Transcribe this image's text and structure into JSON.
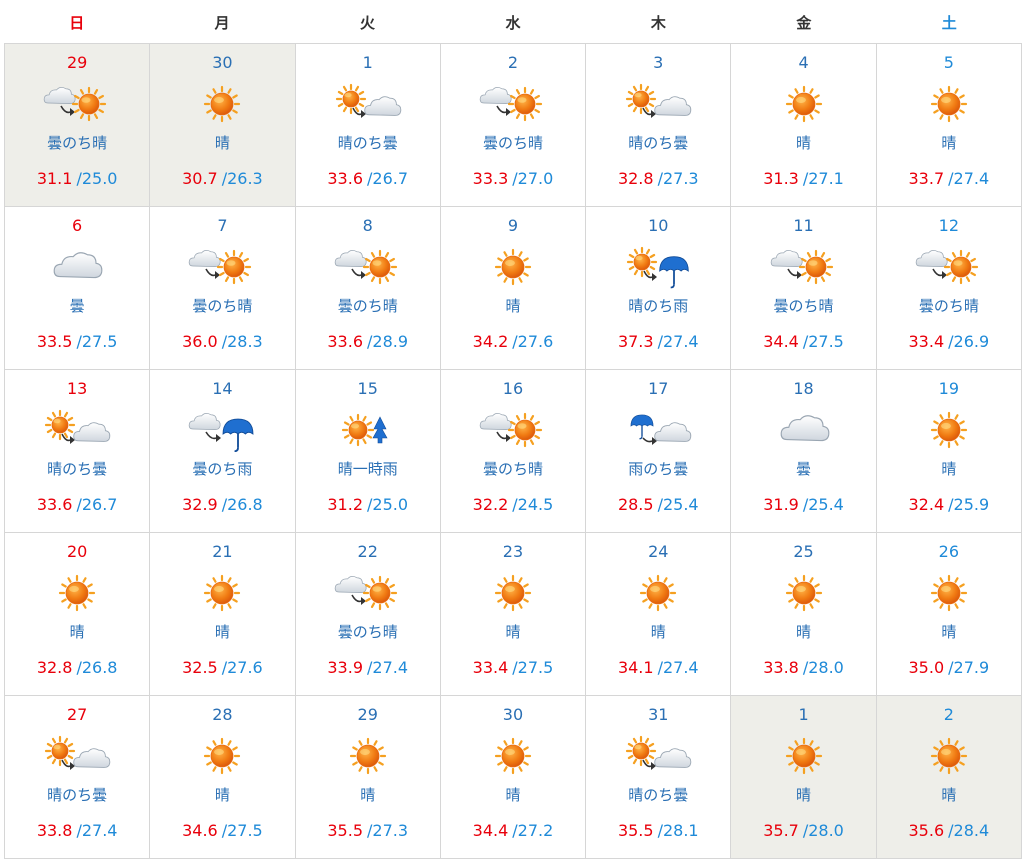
{
  "weekdays": [
    {
      "label": "日",
      "kind": "sun"
    },
    {
      "label": "月",
      "kind": ""
    },
    {
      "label": "火",
      "kind": ""
    },
    {
      "label": "水",
      "kind": ""
    },
    {
      "label": "木",
      "kind": ""
    },
    {
      "label": "金",
      "kind": ""
    },
    {
      "label": "土",
      "kind": "sat"
    }
  ],
  "temp_separator": "/",
  "weeks": [
    [
      {
        "date": "29",
        "icon": "cloud-then-sun-icon",
        "label": "曇のち晴",
        "high": "31.1",
        "low": "25.0",
        "other_month": true
      },
      {
        "date": "30",
        "icon": "sun-icon",
        "label": "晴",
        "high": "30.7",
        "low": "26.3",
        "other_month": true
      },
      {
        "date": "1",
        "icon": "sun-then-cloud-icon",
        "label": "晴のち曇",
        "high": "33.6",
        "low": "26.7",
        "other_month": false
      },
      {
        "date": "2",
        "icon": "cloud-then-sun-icon",
        "label": "曇のち晴",
        "high": "33.3",
        "low": "27.0",
        "other_month": false
      },
      {
        "date": "3",
        "icon": "sun-then-cloud-icon",
        "label": "晴のち曇",
        "high": "32.8",
        "low": "27.3",
        "other_month": false
      },
      {
        "date": "4",
        "icon": "sun-icon",
        "label": "晴",
        "high": "31.3",
        "low": "27.1",
        "other_month": false
      },
      {
        "date": "5",
        "icon": "sun-icon",
        "label": "晴",
        "high": "33.7",
        "low": "27.4",
        "other_month": false
      }
    ],
    [
      {
        "date": "6",
        "icon": "cloud-icon",
        "label": "曇",
        "high": "33.5",
        "low": "27.5",
        "other_month": false
      },
      {
        "date": "7",
        "icon": "cloud-then-sun-icon",
        "label": "曇のち晴",
        "high": "36.0",
        "low": "28.3",
        "other_month": false
      },
      {
        "date": "8",
        "icon": "cloud-then-sun-icon",
        "label": "曇のち晴",
        "high": "33.6",
        "low": "28.9",
        "other_month": false
      },
      {
        "date": "9",
        "icon": "sun-icon",
        "label": "晴",
        "high": "34.2",
        "low": "27.6",
        "other_month": false
      },
      {
        "date": "10",
        "icon": "sun-then-rain-icon",
        "label": "晴のち雨",
        "high": "37.3",
        "low": "27.4",
        "other_month": false
      },
      {
        "date": "11",
        "icon": "cloud-then-sun-icon",
        "label": "曇のち晴",
        "high": "34.4",
        "low": "27.5",
        "other_month": false
      },
      {
        "date": "12",
        "icon": "cloud-then-sun-icon",
        "label": "曇のち晴",
        "high": "33.4",
        "low": "26.9",
        "other_month": false
      }
    ],
    [
      {
        "date": "13",
        "icon": "sun-then-cloud-icon",
        "label": "晴のち曇",
        "high": "33.6",
        "low": "26.7",
        "other_month": false
      },
      {
        "date": "14",
        "icon": "cloud-then-rain-icon",
        "label": "曇のち雨",
        "high": "32.9",
        "low": "26.8",
        "other_month": false
      },
      {
        "date": "15",
        "icon": "sun-with-rain-icon",
        "label": "晴一時雨",
        "high": "31.2",
        "low": "25.0",
        "other_month": false
      },
      {
        "date": "16",
        "icon": "cloud-then-sun-icon",
        "label": "曇のち晴",
        "high": "32.2",
        "low": "24.5",
        "other_month": false
      },
      {
        "date": "17",
        "icon": "rain-then-cloud-icon",
        "label": "雨のち曇",
        "high": "28.5",
        "low": "25.4",
        "other_month": false
      },
      {
        "date": "18",
        "icon": "cloud-icon",
        "label": "曇",
        "high": "31.9",
        "low": "25.4",
        "other_month": false
      },
      {
        "date": "19",
        "icon": "sun-icon",
        "label": "晴",
        "high": "32.4",
        "low": "25.9",
        "other_month": false
      }
    ],
    [
      {
        "date": "20",
        "icon": "sun-icon",
        "label": "晴",
        "high": "32.8",
        "low": "26.8",
        "other_month": false
      },
      {
        "date": "21",
        "icon": "sun-icon",
        "label": "晴",
        "high": "32.5",
        "low": "27.6",
        "other_month": false
      },
      {
        "date": "22",
        "icon": "cloud-then-sun-icon",
        "label": "曇のち晴",
        "high": "33.9",
        "low": "27.4",
        "other_month": false
      },
      {
        "date": "23",
        "icon": "sun-icon",
        "label": "晴",
        "high": "33.4",
        "low": "27.5",
        "other_month": false
      },
      {
        "date": "24",
        "icon": "sun-icon",
        "label": "晴",
        "high": "34.1",
        "low": "27.4",
        "other_month": false
      },
      {
        "date": "25",
        "icon": "sun-icon",
        "label": "晴",
        "high": "33.8",
        "low": "28.0",
        "other_month": false
      },
      {
        "date": "26",
        "icon": "sun-icon",
        "label": "晴",
        "high": "35.0",
        "low": "27.9",
        "other_month": false
      }
    ],
    [
      {
        "date": "27",
        "icon": "sun-then-cloud-icon",
        "label": "晴のち曇",
        "high": "33.8",
        "low": "27.4",
        "other_month": false
      },
      {
        "date": "28",
        "icon": "sun-icon",
        "label": "晴",
        "high": "34.6",
        "low": "27.5",
        "other_month": false
      },
      {
        "date": "29",
        "icon": "sun-icon",
        "label": "晴",
        "high": "35.5",
        "low": "27.3",
        "other_month": false
      },
      {
        "date": "30",
        "icon": "sun-icon",
        "label": "晴",
        "high": "34.4",
        "low": "27.2",
        "other_month": false
      },
      {
        "date": "31",
        "icon": "sun-then-cloud-icon",
        "label": "晴のち曇",
        "high": "35.5",
        "low": "28.1",
        "other_month": false
      },
      {
        "date": "1",
        "icon": "sun-icon",
        "label": "晴",
        "high": "35.7",
        "low": "28.0",
        "other_month": true
      },
      {
        "date": "2",
        "icon": "sun-icon",
        "label": "晴",
        "high": "35.6",
        "low": "28.4",
        "other_month": true
      }
    ]
  ],
  "colors": {
    "sunday": "#e8000b",
    "saturday": "#1f8ad8",
    "text_blue": "#2a6fb4",
    "high_temp": "#e8000b",
    "low_temp": "#1f8ad8",
    "other_month_bg": "#eeeee9",
    "sun_orange": "#f07a12",
    "rain_blue": "#1f6fd0"
  }
}
